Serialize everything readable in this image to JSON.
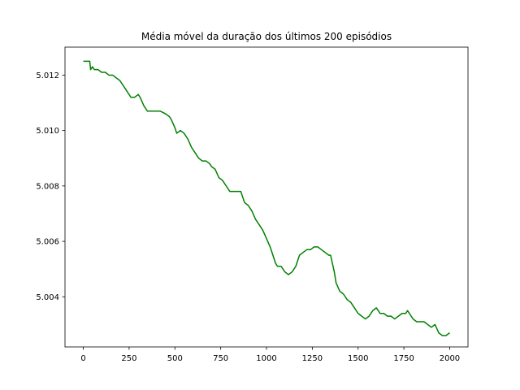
{
  "chart_data": {
    "type": "line",
    "title": "Média móvel da duração dos últimos 200 episódios",
    "xlabel": "",
    "ylabel": "",
    "xlim": [
      -100,
      2100
    ],
    "ylim": [
      5.00219,
      5.01301
    ],
    "x_ticks": [
      0,
      250,
      500,
      750,
      1000,
      1250,
      1500,
      1750,
      2000
    ],
    "y_ticks": [
      5.004,
      5.006,
      5.008,
      5.01,
      5.012
    ],
    "x_tick_labels": [
      "0",
      "250",
      "500",
      "750",
      "1000",
      "1250",
      "1500",
      "1750",
      "2000"
    ],
    "y_tick_labels": [
      "5.004",
      "5.006",
      "5.008",
      "5.010",
      "5.012"
    ],
    "grid": false,
    "legend": "none",
    "series": [
      {
        "color": "#008000",
        "x": [
          0,
          35,
          40,
          50,
          60,
          80,
          100,
          120,
          140,
          160,
          180,
          200,
          220,
          240,
          260,
          280,
          300,
          310,
          330,
          350,
          370,
          400,
          420,
          450,
          470,
          480,
          500,
          510,
          530,
          550,
          570,
          590,
          610,
          630,
          650,
          670,
          690,
          700,
          720,
          740,
          760,
          780,
          800,
          820,
          840,
          860,
          880,
          900,
          920,
          940,
          960,
          980,
          1000,
          1020,
          1040,
          1050,
          1060,
          1080,
          1100,
          1120,
          1140,
          1160,
          1180,
          1200,
          1220,
          1240,
          1260,
          1280,
          1300,
          1320,
          1340,
          1350,
          1370,
          1380,
          1400,
          1420,
          1440,
          1460,
          1480,
          1500,
          1520,
          1540,
          1560,
          1580,
          1600,
          1620,
          1640,
          1660,
          1680,
          1700,
          1720,
          1740,
          1760,
          1770,
          1780,
          1800,
          1820,
          1840,
          1860,
          1880,
          1900,
          1920,
          1940,
          1960,
          1980,
          2000
        ],
        "y": [
          5.0125,
          5.0125,
          5.0122,
          5.0123,
          5.0122,
          5.0122,
          5.0121,
          5.0121,
          5.012,
          5.012,
          5.0119,
          5.0118,
          5.0116,
          5.0114,
          5.0112,
          5.0112,
          5.0113,
          5.0112,
          5.0109,
          5.0107,
          5.0107,
          5.0107,
          5.0107,
          5.0106,
          5.0105,
          5.0104,
          5.0101,
          5.0099,
          5.01,
          5.0099,
          5.0097,
          5.0094,
          5.0092,
          5.009,
          5.0089,
          5.0089,
          5.0088,
          5.0087,
          5.0086,
          5.0083,
          5.0082,
          5.008,
          5.0078,
          5.0078,
          5.0078,
          5.0078,
          5.0074,
          5.0073,
          5.0071,
          5.0068,
          5.0066,
          5.0064,
          5.0061,
          5.0058,
          5.0054,
          5.0052,
          5.0051,
          5.0051,
          5.0049,
          5.0048,
          5.0049,
          5.0051,
          5.0055,
          5.0056,
          5.0057,
          5.0057,
          5.0058,
          5.0058,
          5.0057,
          5.0056,
          5.0055,
          5.0055,
          5.0049,
          5.0045,
          5.0042,
          5.0041,
          5.0039,
          5.0038,
          5.0036,
          5.0034,
          5.0033,
          5.0032,
          5.0033,
          5.0035,
          5.0036,
          5.0034,
          5.0034,
          5.0033,
          5.0033,
          5.0032,
          5.0033,
          5.0034,
          5.0034,
          5.0035,
          5.0034,
          5.0032,
          5.0031,
          5.0031,
          5.0031,
          5.003,
          5.0029,
          5.003,
          5.0027,
          5.0026,
          5.0026,
          5.0027
        ]
      }
    ]
  }
}
